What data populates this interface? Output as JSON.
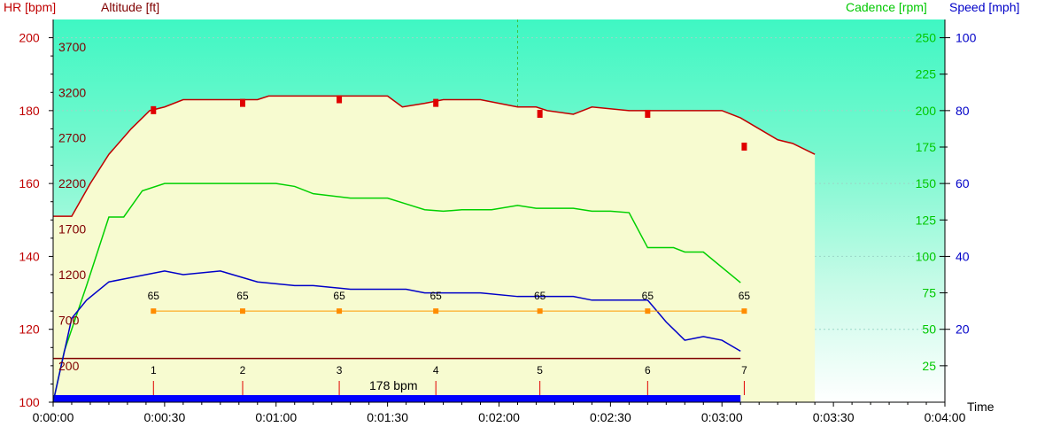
{
  "chart_data": {
    "type": "line",
    "axis_labels": {
      "hr": "HR [bpm]",
      "altitude": "Altitude [ft]",
      "cadence": "Cadence [rpm]",
      "speed": "Speed [mph]",
      "time": "Time"
    },
    "axes": {
      "hr": {
        "range": [
          100,
          205
        ],
        "ticks": [
          "100",
          "120",
          "140",
          "160",
          "180",
          "200"
        ]
      },
      "altitude": {
        "ticks": [
          "200",
          "700",
          "1200",
          "1700",
          "2200",
          "2700",
          "3200",
          "3700"
        ]
      },
      "cadence": {
        "range": [
          0,
          262.5
        ],
        "ticks": [
          "25",
          "50",
          "75",
          "100",
          "125",
          "150",
          "175",
          "200",
          "225",
          "250"
        ]
      },
      "speed": {
        "range": [
          0,
          105
        ],
        "ticks": [
          "20",
          "40",
          "60",
          "80",
          "100"
        ]
      },
      "time": {
        "range_seconds": [
          0,
          240
        ],
        "ticks": [
          "0:00:00",
          "0:00:30",
          "0:01:00",
          "0:01:30",
          "0:02:00",
          "0:02:30",
          "0:03:00",
          "0:03:30",
          "0:04:00"
        ]
      }
    },
    "series": [
      {
        "name": "HR [bpm]",
        "color": "#c00000",
        "x_seconds": [
          0,
          5,
          10,
          15,
          21,
          26,
          30,
          35,
          45,
          55,
          58,
          70,
          80,
          90,
          94,
          100,
          105,
          115,
          125,
          130,
          133,
          140,
          145,
          155,
          165,
          170,
          175,
          180,
          185,
          190,
          195,
          199,
          205
        ],
        "y": [
          151,
          151,
          160,
          168,
          175,
          180,
          181,
          183,
          183,
          183,
          184,
          184,
          184,
          184,
          181,
          182,
          183,
          183,
          181,
          181,
          180,
          179,
          181,
          180,
          180,
          180,
          180,
          180,
          178,
          175,
          172,
          171,
          168
        ]
      },
      {
        "name": "Cadence [rpm]",
        "color": "#00d000",
        "x_seconds": [
          0,
          3,
          9,
          15,
          19,
          24,
          30,
          35,
          50,
          55,
          60,
          65,
          70,
          80,
          90,
          95,
          100,
          105,
          110,
          118,
          125,
          130,
          134,
          140,
          145,
          150,
          155,
          160,
          167,
          170,
          175,
          185
        ],
        "y": [
          0,
          35,
          80,
          127,
          127,
          145,
          150,
          150,
          150,
          150,
          150,
          148,
          143,
          140,
          140,
          136,
          132,
          131,
          132,
          132,
          135,
          133,
          133,
          133,
          131,
          131,
          130,
          106,
          106,
          103,
          103,
          82
        ]
      },
      {
        "name": "Speed [mph]",
        "color": "#0000c8",
        "x_seconds": [
          0,
          5,
          9,
          15,
          20,
          25,
          30,
          35,
          45,
          55,
          65,
          70,
          80,
          90,
          95,
          100,
          105,
          110,
          115,
          125,
          130,
          135,
          140,
          145,
          150,
          160,
          165,
          170,
          175,
          180,
          185
        ],
        "y": [
          0,
          23,
          28,
          33,
          34,
          35,
          36,
          35,
          36,
          33,
          32,
          32,
          31,
          31,
          31,
          30,
          30,
          30,
          30,
          29,
          29,
          29,
          29,
          28,
          28,
          28,
          22,
          17,
          18,
          17,
          14
        ]
      },
      {
        "name": "Altitude [ft]",
        "color": "#800000",
        "x_seconds": [
          0,
          20,
          60,
          100,
          140,
          180,
          185
        ],
        "y": [
          112,
          112,
          112,
          112,
          112,
          112,
          112
        ]
      }
    ],
    "hr_markers_x_seconds": [
      27,
      51,
      77,
      103,
      131,
      160,
      186
    ],
    "hr_markers_y": [
      180,
      182,
      183,
      182,
      179,
      179,
      170
    ],
    "laps": {
      "x_seconds": [
        27,
        51,
        77,
        103,
        131,
        160,
        186
      ],
      "labels": [
        "1",
        "2",
        "3",
        "4",
        "5",
        "6",
        "7"
      ],
      "values": [
        "65",
        "65",
        "65",
        "65",
        "65",
        "65",
        "65"
      ],
      "level_y": 125
    },
    "hr_zone_label": "178 bpm",
    "cursor_x_seconds": 125,
    "data_end_seconds": 185
  }
}
